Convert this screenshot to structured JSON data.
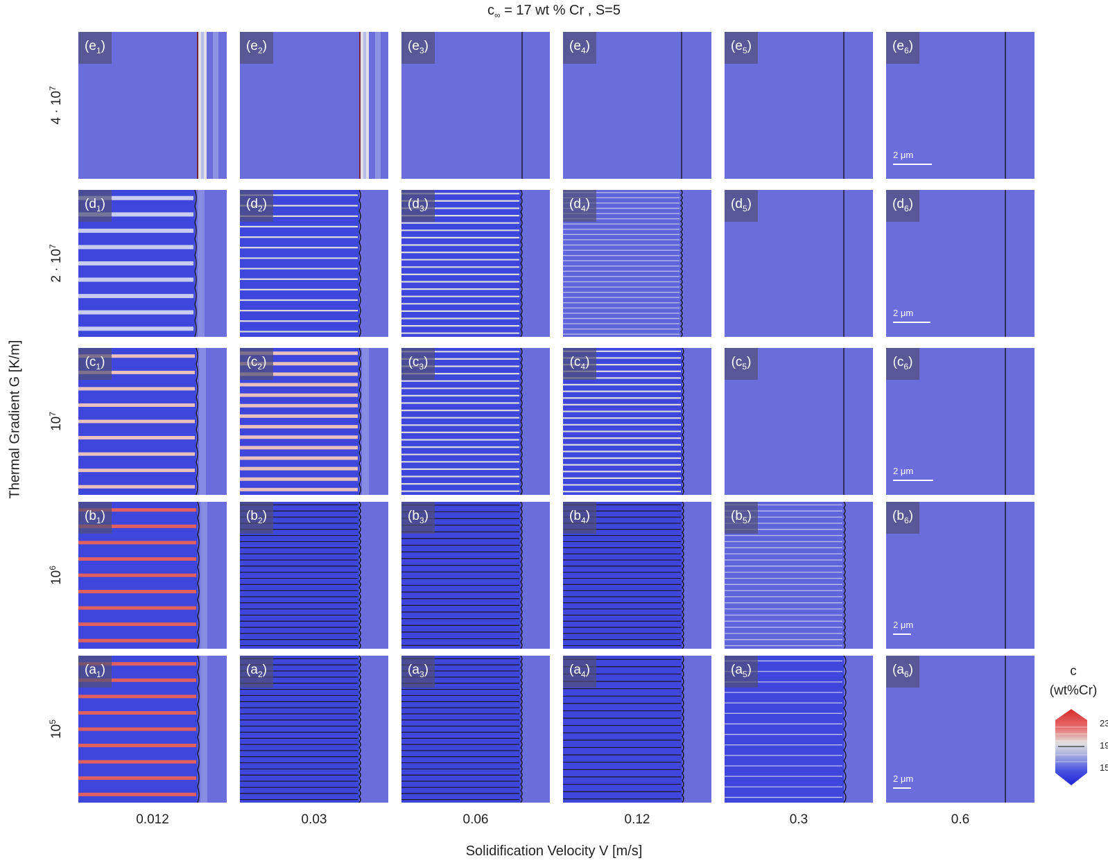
{
  "title": {
    "prefix": "c",
    "sub": "∞",
    "rest": " = 17 wt % Cr , S=5"
  },
  "ylabel": "Thermal Gradient G [K/m]",
  "xlabel": "Solidification Velocity V [m/s]",
  "rows": [
    {
      "letter": "e",
      "g_label": "4 · 10",
      "g_exp": "7"
    },
    {
      "letter": "d",
      "g_label": "2 · 10",
      "g_exp": "7"
    },
    {
      "letter": "c",
      "g_label": "10",
      "g_exp": "7"
    },
    {
      "letter": "b",
      "g_label": "10",
      "g_exp": "6"
    },
    {
      "letter": "a",
      "g_label": "10",
      "g_exp": "5"
    }
  ],
  "columns": [
    "0.012",
    "0.03",
    "0.06",
    "0.12",
    "0.3",
    "0.6"
  ],
  "scale_bar": "2 μm",
  "legend": {
    "title_line1": "c",
    "title_line2": "(wt%Cr)",
    "ticks": [
      "23",
      "19",
      "15"
    ]
  },
  "colors": {
    "background": "#6b6ddd",
    "solid": "#3d45dc",
    "high": "#d83030",
    "mid": "#dcdcdc",
    "low": "#2a2ed8",
    "boundary": "#111111"
  }
}
